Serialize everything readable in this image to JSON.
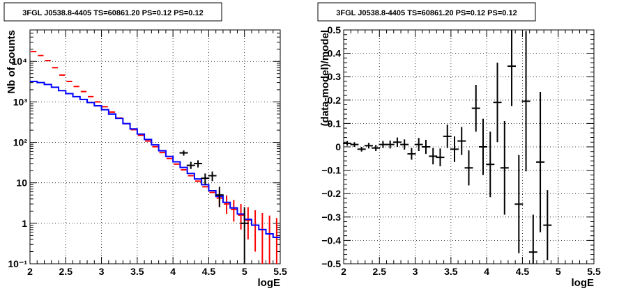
{
  "chart_data": [
    {
      "type": "step",
      "title": "3FGL J0538.8-4405 TS=60861.20 PS=0.12 PS=0.12",
      "xlabel": "logE",
      "ylabel": "Nb of counts",
      "xlim": [
        2,
        5.5
      ],
      "ylim": [
        0.1,
        60000
      ],
      "yscale": "log",
      "grid": true,
      "x_ticks": [
        "2",
        "2.5",
        "3",
        "3.5",
        "4",
        "4.5",
        "5",
        "5.5"
      ],
      "y_ticks": [
        "10⁻¹",
        "1",
        "10",
        "10²",
        "10³",
        "10⁴"
      ],
      "bin_edges": [
        2.0,
        2.1,
        2.2,
        2.3,
        2.4,
        2.5,
        2.6,
        2.7,
        2.8,
        2.9,
        3.0,
        3.1,
        3.2,
        3.3,
        3.4,
        3.5,
        3.6,
        3.7,
        3.8,
        3.9,
        4.0,
        4.1,
        4.2,
        4.3,
        4.4,
        4.5,
        4.6,
        4.7,
        4.8,
        4.9,
        5.0,
        5.1,
        5.2,
        5.3,
        5.4,
        5.5
      ],
      "series": [
        {
          "color": "#ff0000",
          "style": "markers-with-errors",
          "values": [
            17500,
            14000,
            10500,
            7000,
            4600,
            3200,
            2400,
            1800,
            1350,
            1000,
            760,
            560,
            400,
            290,
            205,
            150,
            108,
            78,
            56,
            40,
            29,
            21,
            15,
            11,
            8,
            5.8,
            4.2,
            3,
            2.2,
            1.6,
            1.2,
            0.9,
            0.7,
            0.55,
            0.45
          ],
          "err_low": [
            0,
            0,
            0,
            0,
            0,
            0,
            0,
            0,
            0,
            0,
            0,
            0,
            0,
            0,
            0,
            0,
            0,
            0,
            0,
            0,
            0,
            0,
            0,
            0,
            0,
            0,
            1.6,
            1.3,
            1.1,
            0.9,
            0.8,
            0.7,
            0.6,
            0.5,
            0.43
          ],
          "err_high": [
            0,
            0,
            0,
            0,
            0,
            0,
            0,
            0,
            0,
            0,
            0,
            0,
            0,
            0,
            0,
            0,
            0,
            0,
            0,
            0,
            0,
            0,
            0,
            0,
            0,
            0,
            2.2,
            1.9,
            1.6,
            1.4,
            1.3,
            1.2,
            1.1,
            1.0,
            0.9
          ]
        },
        {
          "color": "#0000ff",
          "style": "step",
          "values": [
            3200,
            3000,
            2700,
            2300,
            1900,
            1600,
            1350,
            1150,
            960,
            800,
            640,
            500,
            390,
            290,
            215,
            160,
            118,
            87,
            62,
            45,
            33,
            24,
            17,
            12.5,
            9,
            6.4,
            4.6,
            3.3,
            2.4,
            1.7,
            1.25,
            0.9,
            0.7,
            0.55,
            0.45
          ]
        },
        {
          "color": "#000000",
          "style": "markers-with-errors",
          "x": [
            4.15,
            4.25,
            4.35,
            4.45,
            4.55,
            4.65,
            5.0
          ],
          "values": [
            55,
            27,
            30,
            13,
            15,
            5,
            1
          ],
          "err_low": [
            8,
            5,
            6,
            4,
            4,
            2.5,
            1
          ],
          "err_high": [
            8,
            6,
            6,
            4,
            4,
            3,
            1.5
          ]
        }
      ]
    },
    {
      "type": "scatter",
      "title": "3FGL J0538.8-4405 TS=60861.20 PS=0.12 PS=0.12",
      "xlabel": "logE",
      "ylabel": "(data-model)/model",
      "xlim": [
        2,
        5.5
      ],
      "ylim": [
        -0.5,
        0.5
      ],
      "grid": true,
      "x_ticks": [
        "2",
        "2.5",
        "3",
        "3.5",
        "4",
        "4.5",
        "5",
        "5.5"
      ],
      "y_ticks": [
        "−0.5",
        "−0.4",
        "−0.3",
        "−0.2",
        "−0.1",
        "0",
        "0.1",
        "0.2",
        "0.3",
        "0.4",
        "0.5"
      ],
      "series": [
        {
          "color": "#000000",
          "x": [
            2.05,
            2.15,
            2.25,
            2.35,
            2.45,
            2.55,
            2.65,
            2.75,
            2.85,
            2.95,
            3.05,
            3.15,
            3.25,
            3.35,
            3.45,
            3.55,
            3.65,
            3.75,
            3.85,
            3.95,
            4.05,
            4.15,
            4.25,
            4.35,
            4.45,
            4.55,
            4.65,
            4.75,
            4.85
          ],
          "y": [
            0.015,
            0.01,
            -0.01,
            0.005,
            -0.005,
            0.01,
            0.01,
            0.02,
            0.01,
            -0.03,
            0.01,
            0.0,
            -0.04,
            -0.045,
            0.045,
            -0.01,
            0.025,
            -0.09,
            0.165,
            0.0,
            -0.075,
            0.19,
            -0.09,
            0.345,
            -0.245,
            0.195,
            -0.45,
            -0.065,
            -0.335
          ],
          "err": [
            0.01,
            0.01,
            0.01,
            0.012,
            0.013,
            0.015,
            0.017,
            0.02,
            0.022,
            0.025,
            0.028,
            0.03,
            0.035,
            0.038,
            0.05,
            0.055,
            0.06,
            0.075,
            0.1,
            0.12,
            0.14,
            0.17,
            0.2,
            0.17,
            0.21,
            0.3,
            0.16,
            0.3,
            0.15
          ]
        }
      ]
    }
  ]
}
